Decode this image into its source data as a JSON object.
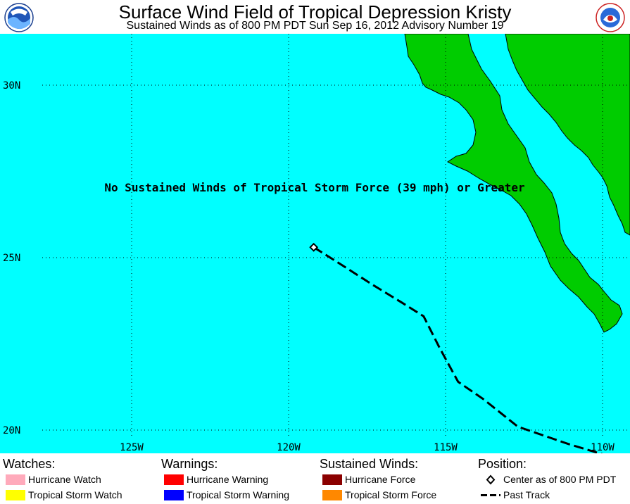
{
  "header": {
    "title": "Surface Wind Field of Tropical Depression Kristy",
    "subtitle": "Sustained Winds as of 800 PM PDT Sun Sep 16, 2012   Advisory Number 19",
    "left_logo_icon": "noaa-logo-icon",
    "right_logo_icon": "nws-logo-icon"
  },
  "map": {
    "message": "No Sustained Winds of Tropical Storm Force (39 mph) or Greater",
    "lat_labels": [
      "30N",
      "25N",
      "20N"
    ],
    "lon_labels": [
      "125W",
      "120W",
      "115W",
      "110W"
    ],
    "colors": {
      "ocean": "#00FFFF",
      "land": "#00CC00",
      "coast": "#000000",
      "grid": "#000000"
    },
    "storm_center": {
      "lat": 25.3,
      "lon": 119.2
    },
    "past_track": [
      {
        "lat": 25.3,
        "lon": 119.2
      },
      {
        "lat": 24.9,
        "lon": 118.5
      },
      {
        "lat": 24.2,
        "lon": 117.3
      },
      {
        "lat": 23.7,
        "lon": 116.4
      },
      {
        "lat": 23.3,
        "lon": 115.7
      },
      {
        "lat": 22.4,
        "lon": 115.2
      },
      {
        "lat": 21.4,
        "lon": 114.6
      },
      {
        "lat": 20.9,
        "lon": 113.8
      },
      {
        "lat": 20.1,
        "lon": 112.7
      },
      {
        "lat": 19.6,
        "lon": 111.1
      },
      {
        "lat": 19.3,
        "lon": 110.0
      }
    ]
  },
  "legend": {
    "watches": {
      "heading": "Watches:",
      "items": [
        {
          "label": "Hurricane Watch",
          "color": "#FFAABB"
        },
        {
          "label": "Tropical Storm Watch",
          "color": "#FFFF00"
        }
      ]
    },
    "warnings": {
      "heading": "Warnings:",
      "items": [
        {
          "label": "Hurricane Warning",
          "color": "#FF0000"
        },
        {
          "label": "Tropical Storm Warning",
          "color": "#0000FF"
        }
      ]
    },
    "winds": {
      "heading": "Sustained Winds:",
      "items": [
        {
          "label": "Hurricane Force",
          "color": "#8B0000"
        },
        {
          "label": "Tropical Storm Force",
          "color": "#FF8800"
        }
      ]
    },
    "position": {
      "heading": "Position:",
      "center_label": "Center as of 800 PM PDT",
      "track_label": "Past Track"
    }
  }
}
